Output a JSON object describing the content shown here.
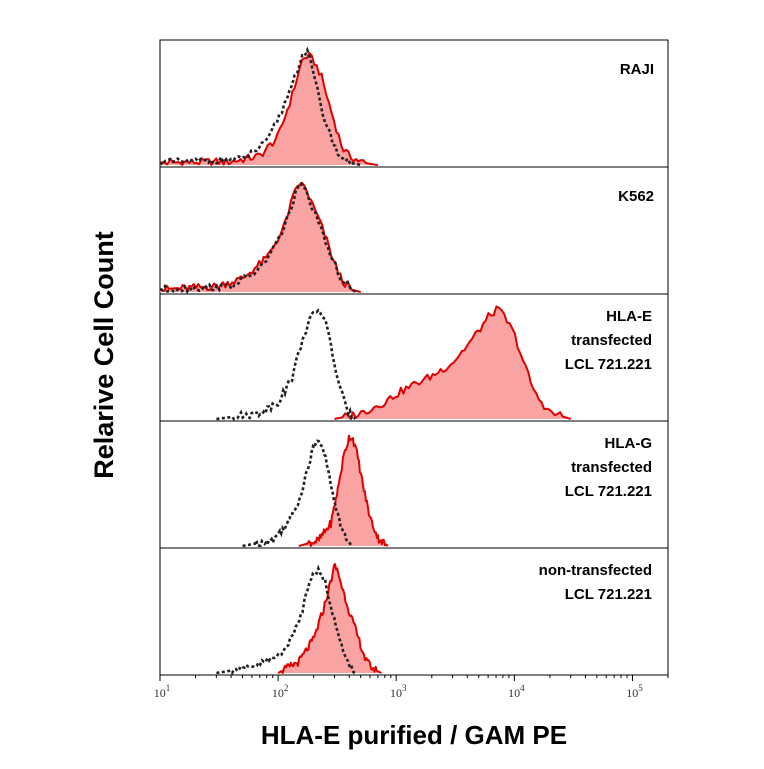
{
  "chart_data": {
    "type": "area",
    "ylabel": "Relarive Cell Count",
    "xlabel": "HLA-E purified / GAM PE",
    "x_scale": "log",
    "xlim": [
      10,
      200000
    ],
    "x_ticks": [
      {
        "value": 10,
        "base": "10",
        "exp": "1"
      },
      {
        "value": 100,
        "base": "10",
        "exp": "2"
      },
      {
        "value": 1000,
        "base": "10",
        "exp": "3"
      },
      {
        "value": 10000,
        "base": "10",
        "exp": "4"
      },
      {
        "value": 100000,
        "base": "10",
        "exp": "5"
      }
    ],
    "colors": {
      "stained_fill": "#f9a3a3",
      "stained_line": "#e00000",
      "control_line": "#222222"
    },
    "panels": [
      {
        "label_lines": [
          "RAJI"
        ],
        "stained": {
          "x": [
            10,
            40,
            70,
            100,
            130,
            160,
            180,
            200,
            230,
            260,
            300,
            350,
            400,
            500,
            600,
            700
          ],
          "y": [
            0.02,
            0.03,
            0.08,
            0.25,
            0.6,
            0.93,
            0.97,
            0.92,
            0.8,
            0.6,
            0.38,
            0.15,
            0.08,
            0.03,
            0.01,
            0
          ]
        },
        "control": {
          "x": [
            10,
            50,
            80,
            110,
            140,
            160,
            175,
            190,
            210,
            240,
            280,
            320,
            380,
            500
          ],
          "y": [
            0.02,
            0.05,
            0.2,
            0.5,
            0.8,
            0.97,
            1.0,
            0.9,
            0.7,
            0.45,
            0.25,
            0.1,
            0.03,
            0
          ]
        }
      },
      {
        "label_lines": [
          "K562"
        ],
        "stained": {
          "x": [
            10,
            30,
            50,
            80,
            110,
            130,
            150,
            170,
            190,
            220,
            250,
            300,
            350,
            420,
            500
          ],
          "y": [
            0.02,
            0.05,
            0.12,
            0.3,
            0.55,
            0.8,
            0.97,
            0.92,
            0.8,
            0.65,
            0.5,
            0.25,
            0.1,
            0.02,
            0
          ]
        },
        "control": {
          "x": [
            10,
            40,
            70,
            100,
            130,
            150,
            170,
            200,
            240,
            290,
            350,
            450
          ],
          "y": [
            0.02,
            0.05,
            0.2,
            0.45,
            0.75,
            0.96,
            0.9,
            0.72,
            0.5,
            0.28,
            0.1,
            0
          ]
        }
      },
      {
        "label_lines": [
          "HLA-E",
          "transfected",
          "LCL 721.221"
        ],
        "stained": {
          "x": [
            300,
            500,
            800,
            1000,
            1500,
            2000,
            3000,
            4000,
            5000,
            6000,
            7000,
            8000,
            10000,
            12000,
            15000,
            20000,
            30000
          ],
          "y": [
            0,
            0.05,
            0.15,
            0.22,
            0.32,
            0.38,
            0.5,
            0.65,
            0.78,
            0.9,
            0.97,
            0.93,
            0.75,
            0.5,
            0.22,
            0.06,
            0
          ]
        },
        "control": {
          "x": [
            30,
            70,
            100,
            130,
            160,
            190,
            220,
            250,
            280,
            320,
            380,
            450
          ],
          "y": [
            0,
            0.05,
            0.15,
            0.35,
            0.7,
            0.9,
            0.97,
            0.88,
            0.65,
            0.35,
            0.08,
            0
          ]
        }
      },
      {
        "label_lines": [
          "HLA-G",
          "transfected",
          "LCL 721.221"
        ],
        "stained": {
          "x": [
            150,
            220,
            280,
            320,
            360,
            400,
            430,
            470,
            520,
            600,
            700,
            850
          ],
          "y": [
            0,
            0.05,
            0.2,
            0.5,
            0.8,
            0.97,
            0.95,
            0.8,
            0.55,
            0.25,
            0.07,
            0
          ]
        },
        "control": {
          "x": [
            50,
            90,
            120,
            150,
            180,
            200,
            220,
            240,
            260,
            300,
            350,
            420
          ],
          "y": [
            0,
            0.05,
            0.2,
            0.4,
            0.7,
            0.88,
            0.95,
            0.88,
            0.7,
            0.4,
            0.12,
            0
          ]
        }
      },
      {
        "label_lines": [
          "non-transfected",
          "LCL 721.221"
        ],
        "stained": {
          "x": [
            100,
            150,
            200,
            240,
            270,
            300,
            320,
            350,
            400,
            480,
            560,
            650,
            750
          ],
          "y": [
            0,
            0.1,
            0.3,
            0.55,
            0.75,
            0.95,
            0.9,
            0.75,
            0.55,
            0.3,
            0.1,
            0.03,
            0
          ]
        },
        "control": {
          "x": [
            30,
            60,
            100,
            130,
            160,
            180,
            200,
            220,
            250,
            280,
            320,
            380,
            450
          ],
          "y": [
            0,
            0.05,
            0.15,
            0.3,
            0.55,
            0.78,
            0.92,
            0.9,
            0.8,
            0.6,
            0.35,
            0.1,
            0
          ]
        }
      }
    ]
  }
}
